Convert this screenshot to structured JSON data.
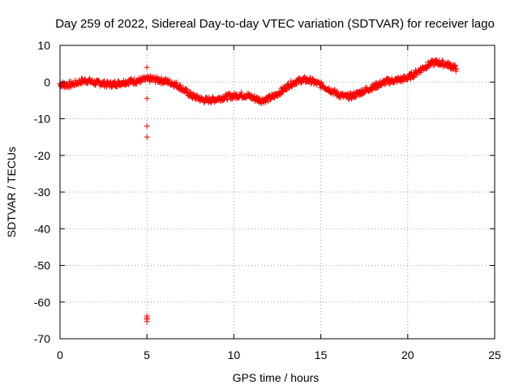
{
  "chart_data": {
    "type": "scatter",
    "title": "Day 259 of 2022, Sidereal Day-to-day VTEC variation (SDTVAR) for receiver lago",
    "xlabel": "GPS time / hours",
    "ylabel": "SDTVAR / TECUs",
    "xlim": [
      0,
      25
    ],
    "ylim": [
      -70,
      10
    ],
    "xticks": [
      "0",
      "5",
      "10",
      "15",
      "20",
      "25"
    ],
    "yticks": [
      "10",
      "0",
      "-10",
      "-20",
      "-30",
      "-40",
      "-50",
      "-60",
      "-70"
    ],
    "grid": true,
    "marker": "plus",
    "color": "#ff0000",
    "series": [
      {
        "name": "SDTVAR",
        "trend": [
          [
            0.0,
            -0.5
          ],
          [
            0.3,
            -0.8
          ],
          [
            0.7,
            -0.6
          ],
          [
            1.2,
            0.2
          ],
          [
            1.6,
            0.4
          ],
          [
            2.0,
            -0.2
          ],
          [
            2.4,
            -0.3
          ],
          [
            2.8,
            -0.7
          ],
          [
            3.2,
            -0.5
          ],
          [
            3.6,
            -0.1
          ],
          [
            4.0,
            0.2
          ],
          [
            4.4,
            0.3
          ],
          [
            4.8,
            0.6
          ],
          [
            5.2,
            0.8
          ],
          [
            5.6,
            0.6
          ],
          [
            6.0,
            0.3
          ],
          [
            6.4,
            -0.2
          ],
          [
            6.8,
            -1.0
          ],
          [
            7.2,
            -2.5
          ],
          [
            7.6,
            -3.8
          ],
          [
            8.0,
            -4.5
          ],
          [
            8.4,
            -5.0
          ],
          [
            8.8,
            -4.8
          ],
          [
            9.2,
            -4.4
          ],
          [
            9.6,
            -4.0
          ],
          [
            10.0,
            -3.8
          ],
          [
            10.4,
            -3.5
          ],
          [
            10.8,
            -3.7
          ],
          [
            11.2,
            -4.5
          ],
          [
            11.6,
            -5.0
          ],
          [
            12.0,
            -4.5
          ],
          [
            12.4,
            -3.6
          ],
          [
            12.8,
            -2.2
          ],
          [
            13.2,
            -0.7
          ],
          [
            13.6,
            0.2
          ],
          [
            14.0,
            0.6
          ],
          [
            14.4,
            0.4
          ],
          [
            14.8,
            -0.4
          ],
          [
            15.2,
            -1.2
          ],
          [
            15.6,
            -2.3
          ],
          [
            16.0,
            -3.4
          ],
          [
            16.4,
            -4.0
          ],
          [
            16.8,
            -3.8
          ],
          [
            17.2,
            -3.0
          ],
          [
            17.6,
            -2.1
          ],
          [
            18.0,
            -1.4
          ],
          [
            18.4,
            -0.5
          ],
          [
            18.8,
            0.2
          ],
          [
            19.2,
            0.4
          ],
          [
            19.6,
            0.7
          ],
          [
            20.0,
            1.2
          ],
          [
            20.4,
            2.3
          ],
          [
            20.8,
            3.6
          ],
          [
            21.2,
            4.8
          ],
          [
            21.6,
            5.4
          ],
          [
            22.0,
            5.1
          ],
          [
            22.4,
            4.6
          ],
          [
            22.8,
            3.6
          ]
        ],
        "outliers": [
          [
            5.0,
            4.0
          ],
          [
            5.0,
            -4.5
          ],
          [
            5.0,
            -12.0
          ],
          [
            5.0,
            -15.0
          ],
          [
            5.0,
            -63.8
          ],
          [
            5.0,
            -64.3
          ],
          [
            5.0,
            -64.7
          ],
          [
            5.0,
            -65.3
          ]
        ]
      }
    ]
  }
}
